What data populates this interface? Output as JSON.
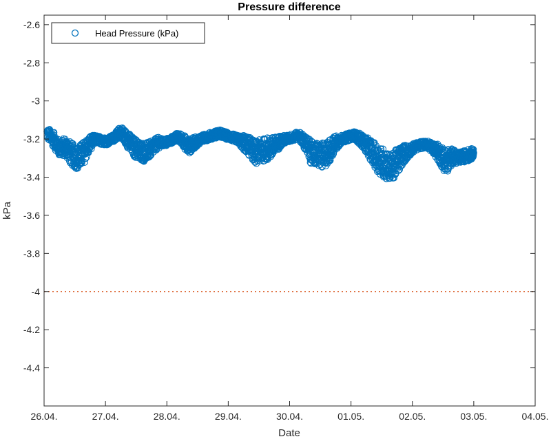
{
  "chart_data": {
    "type": "scatter",
    "title": "Pressure difference",
    "xlabel": "Date",
    "ylabel": "kPa",
    "x_ticks": [
      "26.04.",
      "27.04.",
      "28.04.",
      "29.04.",
      "30.04.",
      "01.05.",
      "02.05.",
      "03.05.",
      "04.05."
    ],
    "xlim_days": [
      0,
      8
    ],
    "ylim": [
      -4.6,
      -2.55
    ],
    "y_ticks": [
      -2.6,
      -2.8,
      -3,
      -3.2,
      -3.4,
      -3.6,
      -3.8,
      -4,
      -4.2,
      -4.4
    ],
    "grid": false,
    "legend": {
      "position": "top-left",
      "entries": [
        "Head Pressure (kPa)"
      ]
    },
    "series": [
      {
        "name": "Head Pressure (kPa)",
        "marker": "open-circle",
        "color": "#0072BD",
        "x_days": [
          0.05,
          0.15,
          0.25,
          0.35,
          0.45,
          0.55,
          0.65,
          0.75,
          0.85,
          0.95,
          1.05,
          1.15,
          1.25,
          1.35,
          1.45,
          1.55,
          1.65,
          1.75,
          1.85,
          1.95,
          2.05,
          2.15,
          2.25,
          2.35,
          2.45,
          2.55,
          2.65,
          2.75,
          2.85,
          2.95,
          3.05,
          3.15,
          3.25,
          3.35,
          3.45,
          3.55,
          3.65,
          3.75,
          3.85,
          3.95,
          4.05,
          4.15,
          4.25,
          4.35,
          4.45,
          4.55,
          4.65,
          4.75,
          4.85,
          4.95,
          5.05,
          5.15,
          5.25,
          5.35,
          5.45,
          5.55,
          5.65,
          5.75,
          5.85,
          5.95,
          6.05,
          6.15,
          6.25,
          6.35,
          6.45,
          6.55,
          6.65,
          6.75,
          6.85,
          6.95,
          7.0
        ],
        "y": [
          -3.17,
          -3.2,
          -3.25,
          -3.24,
          -3.28,
          -3.3,
          -3.27,
          -3.22,
          -3.2,
          -3.21,
          -3.21,
          -3.19,
          -3.16,
          -3.2,
          -3.24,
          -3.26,
          -3.27,
          -3.25,
          -3.22,
          -3.22,
          -3.21,
          -3.19,
          -3.2,
          -3.24,
          -3.22,
          -3.2,
          -3.19,
          -3.18,
          -3.17,
          -3.18,
          -3.19,
          -3.2,
          -3.22,
          -3.24,
          -3.27,
          -3.26,
          -3.25,
          -3.24,
          -3.21,
          -3.2,
          -3.19,
          -3.18,
          -3.22,
          -3.27,
          -3.28,
          -3.29,
          -3.26,
          -3.22,
          -3.2,
          -3.19,
          -3.18,
          -3.2,
          -3.23,
          -3.27,
          -3.31,
          -3.33,
          -3.35,
          -3.32,
          -3.28,
          -3.26,
          -3.24,
          -3.23,
          -3.23,
          -3.25,
          -3.28,
          -3.32,
          -3.29,
          -3.3,
          -3.29,
          -3.28,
          -3.27
        ],
        "spread": [
          0.03,
          0.04,
          0.04,
          0.05,
          0.06,
          0.06,
          0.06,
          0.04,
          0.02,
          0.02,
          0.02,
          0.02,
          0.03,
          0.04,
          0.05,
          0.05,
          0.05,
          0.04,
          0.03,
          0.02,
          0.02,
          0.02,
          0.03,
          0.04,
          0.03,
          0.02,
          0.02,
          0.02,
          0.02,
          0.02,
          0.02,
          0.02,
          0.04,
          0.05,
          0.06,
          0.06,
          0.06,
          0.05,
          0.03,
          0.02,
          0.02,
          0.02,
          0.04,
          0.06,
          0.06,
          0.07,
          0.06,
          0.04,
          0.02,
          0.02,
          0.02,
          0.03,
          0.04,
          0.06,
          0.07,
          0.08,
          0.07,
          0.07,
          0.05,
          0.03,
          0.02,
          0.02,
          0.02,
          0.03,
          0.05,
          0.07,
          0.04,
          0.03,
          0.03,
          0.03,
          0.02
        ]
      }
    ],
    "reference_line": {
      "y": -4,
      "style": "dotted",
      "color": "#D95319"
    }
  }
}
